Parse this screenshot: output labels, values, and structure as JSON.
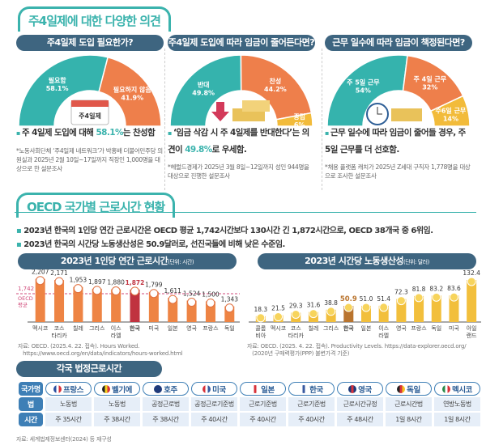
{
  "opinions": {
    "title": "주4일제에 대한 다양한 의견",
    "cards": [
      {
        "question": "주4일제 도입 필요한가?",
        "icon": "calendar-icon",
        "icon_label": "주4일제",
        "segments": [
          {
            "label": "필요함",
            "value": 58.1,
            "color": "#35b3ad"
          },
          {
            "label": "필요하지 않음",
            "value": 41.9,
            "color": "#ee7f4b"
          }
        ],
        "bullet_pre": "주 4일제 도입에 대해 ",
        "bullet_hl": "58.1%",
        "bullet_post": "는 찬성함",
        "note": "*노동사회단체 ‘주4일제 네트워크’가 박홍배 더불어민주당 의원실과 2025년 2월 10일~17일까지 직장인 1,000명을 대상으로 한 설문조사"
      },
      {
        "question": "주4일제 도입에 따라 임금이 줄어든다면?",
        "icon": "gold-bars-down-icon",
        "segments": [
          {
            "label": "반대",
            "value": 49.8,
            "color": "#35b3ad"
          },
          {
            "label": "찬성",
            "value": 44.2,
            "color": "#ee7f4b"
          },
          {
            "label": "중립",
            "value": 6,
            "color": "#f2bb3a"
          }
        ],
        "bullet_pre": "‘임금 삭감 시 주 4일제를 반대한다’는 의견이 ",
        "bullet_hl": "49.8%",
        "bullet_post": "로 우세함.",
        "note": "*헤럴드경제가 2025년 3월 8일~12일까지 성인 944명을 대상으로 진행한 설문조사"
      },
      {
        "question": "근무 일수에 따라 임금이 책정된다면?",
        "icon": "clock-icon",
        "segments": [
          {
            "label": "주 5일 근무",
            "value": 54,
            "color": "#35b3ad"
          },
          {
            "label": "주 4일 근무",
            "value": 32,
            "color": "#ee7f4b"
          },
          {
            "label": "주6일 근무",
            "value": 14,
            "color": "#f2bb3a"
          }
        ],
        "bullet_pre": "근무 일수에 따라 임금이 줄어들 경우, 주 5일 근무를 더 선호함.",
        "bullet_hl": "",
        "bullet_post": "",
        "note": "*채용 플랫폼 캐치가 2025년 Z세대 구직자 1,778명을 대상으로 조사한 설문조사"
      }
    ]
  },
  "oecd": {
    "title": "OECD 국가별 근로시간 현황",
    "bullets": [
      "2023년 한국의 1인당 연간 근로시간은 OECD 평균 1,742시간보다 130시간 긴 1,872시간으로, OECD 38개국 중 6위임.",
      "2023년 한국의 시간당 노동생산성은 50.9달러로, 선진국들에 비해 낮은 수준임."
    ]
  },
  "chart_data": [
    {
      "type": "bar",
      "title": "2023년 1인당 연간 근로시간",
      "unit": "(단위: 시간)",
      "categories": [
        "멕시코",
        "코스\n타리카",
        "칠레",
        "그리스",
        "이스\n라엘",
        "한국",
        "미국",
        "일본",
        "영국",
        "프랑스",
        "독일"
      ],
      "labels": [
        "2,207",
        "2,171",
        "1,953",
        "1,897",
        "1,880",
        "1,872",
        "1,799",
        "1,611",
        "1,524",
        "1,500",
        "1,343"
      ],
      "values": [
        2207,
        2171,
        1953,
        1897,
        1880,
        1872,
        1799,
        1611,
        1524,
        1500,
        1343
      ],
      "highlight": "한국",
      "reference": {
        "value": 1742,
        "label": "1,742",
        "name": "OECD\n평균"
      },
      "bar_color": "#ee8444",
      "highlight_color": "#c0323f",
      "ylim": [
        850,
        2250
      ],
      "source": "자료: OECD. (2025.4. 22. 접속). Hours Worked.\n   https://www.oecd.org/en/data/indicators/hours-worked.html"
    },
    {
      "type": "bar",
      "title": "2023년 시간당 노동생산성",
      "unit": "(단위: 달러)",
      "categories": [
        "콜롬\n비아",
        "멕시코",
        "코스\n타리카",
        "칠레",
        "그리스",
        "한국",
        "일본",
        "이스\n라엘",
        "영국",
        "프랑스",
        "독일",
        "미국",
        "아일\n랜드"
      ],
      "labels": [
        "18.3",
        "21.5",
        "29.3",
        "31.6",
        "38.8",
        "50.9",
        "51.0",
        "51.4",
        "72.3",
        "81.8",
        "83.2",
        "83.6",
        "132.4"
      ],
      "values": [
        18.3,
        21.5,
        29.3,
        31.6,
        38.8,
        50.9,
        51.0,
        51.4,
        72.3,
        81.8,
        83.2,
        83.6,
        132.4
      ],
      "highlight": "한국",
      "bar_color": "#f2bf3c",
      "highlight_color": "#b9742e",
      "ylim": [
        0,
        140
      ],
      "source": "자료: OECD. (2025. 4. 22. 접속). Productivity Levels. https://data-explorer.oecd.org/\n   (2020년 구매력평가(PPP) 불변가격 기준)"
    }
  ],
  "legal": {
    "title": "각국 법정근로시간",
    "row_headers": [
      "국가명",
      "법",
      "시간"
    ],
    "countries": [
      {
        "name": "프랑스",
        "law": "노동법",
        "hours": "주 35시간",
        "flag": [
          "#2b4fa0",
          "#fff",
          "#d8323a"
        ]
      },
      {
        "name": "벨기에",
        "law": "노동법",
        "hours": "주 38시간",
        "flag": [
          "#222",
          "#f5d020",
          "#d8323a"
        ]
      },
      {
        "name": "호주",
        "law": "공정근로법",
        "hours": "주 38시간",
        "flag": [
          "#1f3a7a",
          "#1f3a7a",
          "#1f3a7a"
        ]
      },
      {
        "name": "미국",
        "law": "공정근로기준법",
        "hours": "주 40시간",
        "flag": [
          "#d8323a",
          "#fff",
          "#3a5aa0"
        ]
      },
      {
        "name": "일본",
        "law": "근로기준법",
        "hours": "주 40시간",
        "flag": [
          "#fff",
          "#d8323a",
          "#fff"
        ]
      },
      {
        "name": "한국",
        "law": "근로기준법",
        "hours": "주 40시간",
        "flag": [
          "#fff",
          "#3a5aa0",
          "#fff"
        ]
      },
      {
        "name": "영국",
        "law": "근로시간규정",
        "hours": "주 48시간",
        "flag": [
          "#1f3a7a",
          "#d8323a",
          "#1f3a7a"
        ]
      },
      {
        "name": "독일",
        "law": "근로시간법",
        "hours": "1일 8시간",
        "flag": [
          "#222",
          "#d8323a",
          "#f5c020"
        ]
      },
      {
        "name": "멕시코",
        "law": "연방노동법",
        "hours": "1일 8시간",
        "flag": [
          "#2a8a4a",
          "#fff",
          "#d8323a"
        ]
      }
    ],
    "source": "자료: 세계법제정보센터(2024) 등 재구성"
  }
}
